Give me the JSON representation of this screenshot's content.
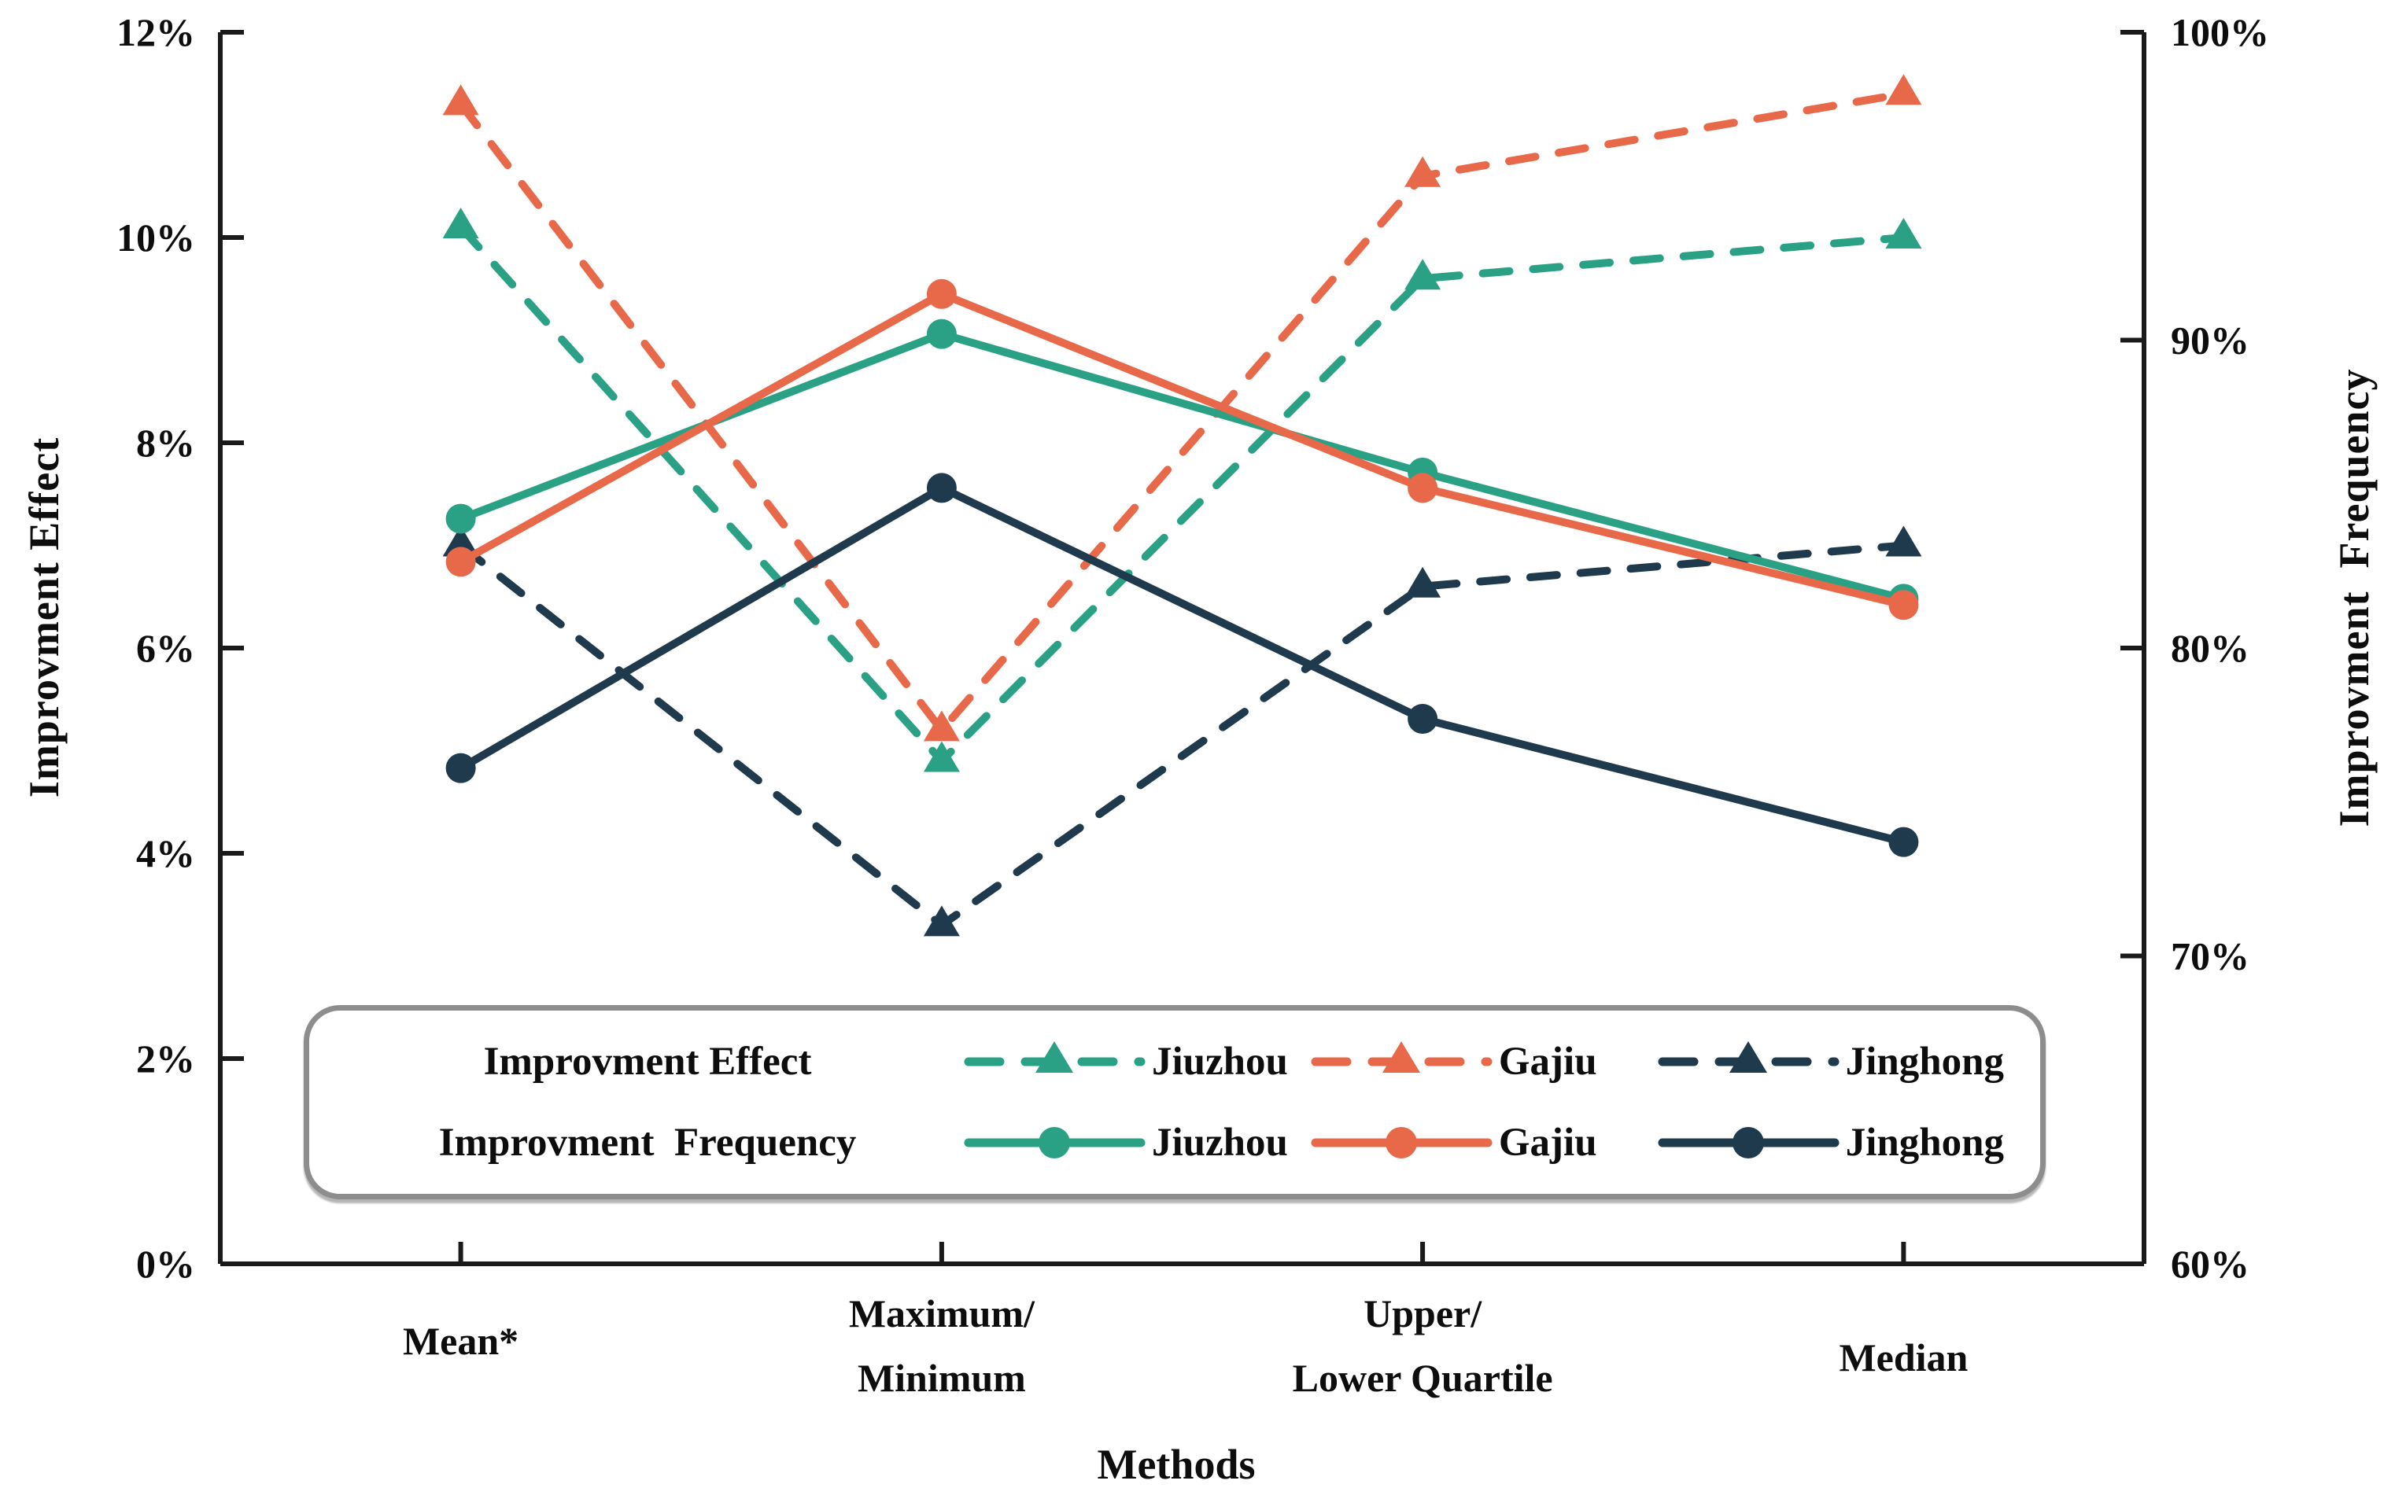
{
  "chart_data": {
    "type": "line",
    "x_title": "Methods",
    "categories": [
      "Mean*",
      "Maximum/Minimum",
      "Upper/Lower Quartile",
      "Median"
    ],
    "left_axis": {
      "label": "Improvment Effect",
      "min": 0,
      "max": 12,
      "ticks": [
        "0%",
        "2%",
        "4%",
        "6%",
        "8%",
        "10%",
        "12%"
      ]
    },
    "right_axis": {
      "label": "Improvment  Frequency",
      "min": 60,
      "max": 100,
      "ticks": [
        "60%",
        "70%",
        "80%",
        "90%",
        "100%"
      ]
    },
    "grid": false,
    "legend_position": "bottom-left inside plot",
    "series": [
      {
        "name": "Jiuzhou",
        "group": "Improvment Effect",
        "axis": "left",
        "style": "dashed",
        "marker": "triangle",
        "color": "#2aa185",
        "values": [
          10.1,
          4.9,
          9.6,
          10.0
        ]
      },
      {
        "name": "Gajiu",
        "group": "Improvment Effect",
        "axis": "left",
        "style": "dashed",
        "marker": "triangle",
        "color": "#e7694a",
        "values": [
          11.3,
          5.2,
          10.6,
          11.4
        ]
      },
      {
        "name": "Jinghong",
        "group": "Improvment Effect",
        "axis": "left",
        "style": "dashed",
        "marker": "triangle",
        "color": "#1f3a4c",
        "values": [
          7.0,
          3.3,
          6.6,
          7.0
        ]
      },
      {
        "name": "Jiuzhou",
        "group": "Improvment Frequency",
        "axis": "right",
        "style": "solid",
        "marker": "circle",
        "color": "#2aa185",
        "values": [
          84.2,
          90.2,
          85.7,
          81.6
        ]
      },
      {
        "name": "Gajiu",
        "group": "Improvment Frequency",
        "axis": "right",
        "style": "solid",
        "marker": "circle",
        "color": "#e7694a",
        "values": [
          82.8,
          91.5,
          85.2,
          81.4
        ]
      },
      {
        "name": "Jinghong",
        "group": "Improvment Frequency",
        "axis": "right",
        "style": "solid",
        "marker": "circle",
        "color": "#1f3a4c",
        "values": [
          76.1,
          85.2,
          77.7,
          73.7
        ]
      }
    ]
  },
  "legend": {
    "effect_label": "Improvment Effect",
    "frequency_label": "Improvment  Frequency"
  },
  "colors": {
    "axis": "#1a1a1a",
    "text": "#0d0d0d",
    "legend_border": "#8d8d8d",
    "background": "#ffffff"
  }
}
